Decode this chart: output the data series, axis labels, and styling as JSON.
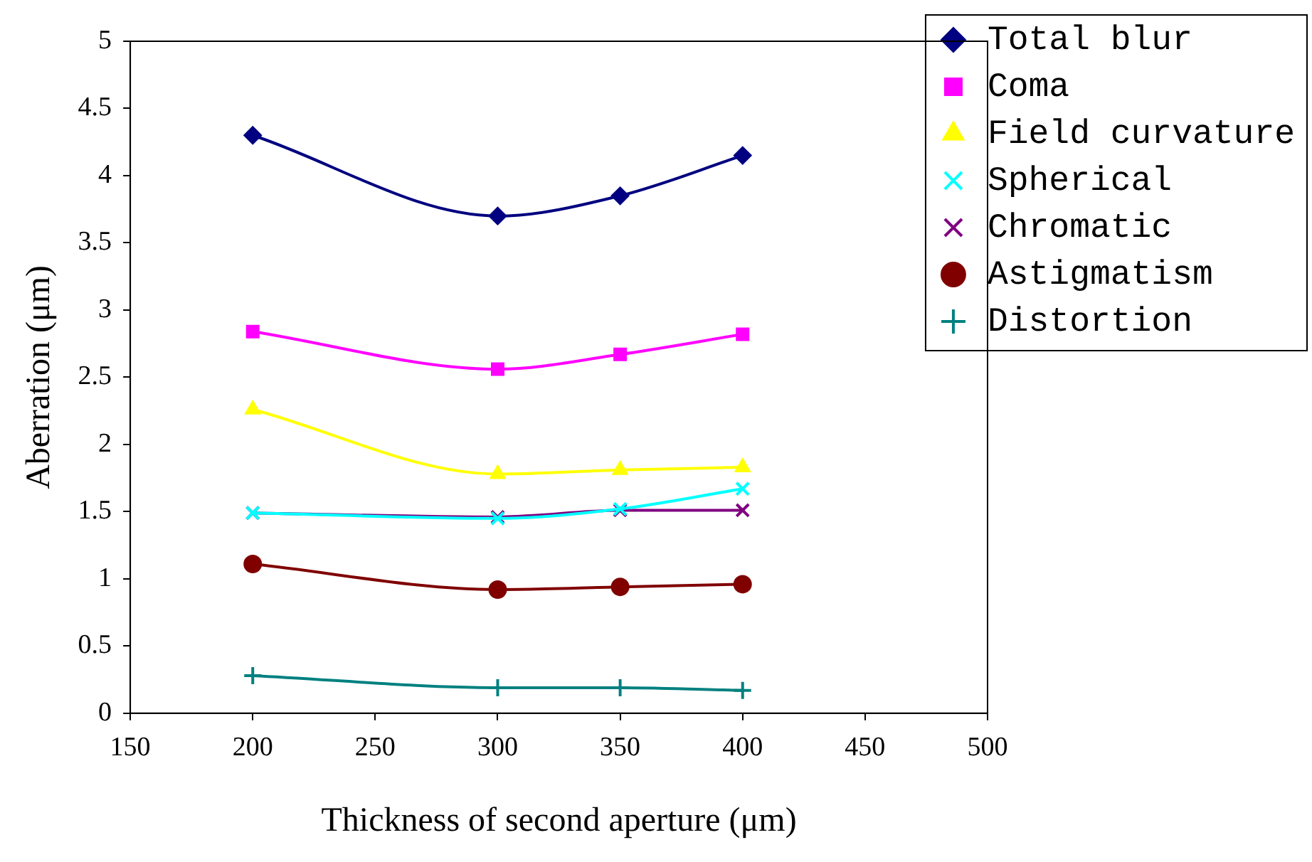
{
  "chart_data": {
    "type": "line",
    "xlabel": "Thickness of second aperture (μm)",
    "ylabel": "Aberration (μm)",
    "x": [
      200,
      300,
      350,
      400
    ],
    "series": [
      {
        "name": "Total blur",
        "color": "#000080",
        "marker": "diamond",
        "values": [
          4.3,
          3.7,
          3.85,
          4.15
        ]
      },
      {
        "name": "Coma",
        "color": "#ff00ff",
        "marker": "square",
        "values": [
          2.84,
          2.56,
          2.67,
          2.82
        ]
      },
      {
        "name": "Field curvature",
        "color": "#ffff00",
        "marker": "triangle",
        "values": [
          2.26,
          1.78,
          1.81,
          1.83
        ]
      },
      {
        "name": "Spherical",
        "color": "#00ffff",
        "marker": "cross",
        "values": [
          1.49,
          1.45,
          1.52,
          1.67
        ]
      },
      {
        "name": "Chromatic",
        "color": "#800080",
        "marker": "cross",
        "values": [
          1.49,
          1.46,
          1.51,
          1.51
        ]
      },
      {
        "name": "Astigmatism",
        "color": "#800000",
        "marker": "circle",
        "values": [
          1.11,
          0.92,
          0.94,
          0.96
        ]
      },
      {
        "name": "Distortion",
        "color": "#008080",
        "marker": "plus",
        "values": [
          0.28,
          0.19,
          0.19,
          0.17
        ]
      }
    ],
    "xlim": [
      150,
      500
    ],
    "xticks": [
      150,
      200,
      250,
      300,
      350,
      400,
      450,
      500
    ],
    "ylim": [
      0,
      5
    ],
    "yticks": [
      0,
      0.5,
      1,
      1.5,
      2,
      2.5,
      3,
      3.5,
      4,
      4.5,
      5
    ],
    "grid": false,
    "legend": "top right"
  }
}
